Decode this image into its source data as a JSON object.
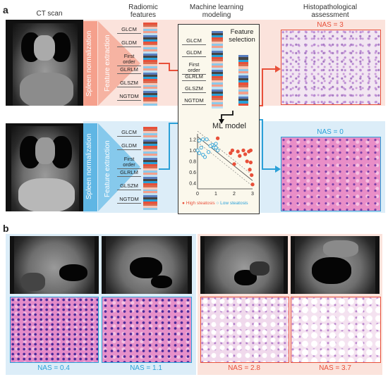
{
  "panel_a": {
    "label": "a",
    "headers": {
      "ct_scan": "CT scan",
      "radiomic": "Radiomic features",
      "ml": "Machine learning modeling",
      "histo": "Histopathological assessment"
    },
    "spleen_normalization": "Spleen normalization",
    "feature_extraction": "Feature extraction",
    "features": [
      "GLCM",
      "GLDM",
      "First order",
      "GLRLM",
      "GLSZM",
      "NGTDM"
    ],
    "feature_selection": "Feature selection",
    "ml_model": "ML model",
    "top_nas": "NAS = 3",
    "bottom_nas": "NAS = 0",
    "colors": {
      "high": "#e8503a",
      "low": "#2aa0d8",
      "band_top": "#fbe3dc",
      "band_bottom": "#dcedf8"
    }
  },
  "chart_data": {
    "type": "scatter",
    "xlim": [
      0,
      3
    ],
    "ylim": [
      0.3,
      1.3
    ],
    "x_ticks": [
      "0",
      "1",
      "2",
      "3"
    ],
    "y_ticks": [
      "0.4",
      "0.6",
      "0.8",
      "1.0",
      "1.2"
    ],
    "series": [
      {
        "name": "High steatosis",
        "marker": "filled",
        "color": "#e8503a",
        "points": [
          [
            1.1,
            1.22
          ],
          [
            1.9,
            1.0
          ],
          [
            2.2,
            0.98
          ],
          [
            2.6,
            0.93
          ],
          [
            2.8,
            0.98
          ],
          [
            2.9,
            1.0
          ],
          [
            2.3,
            0.9
          ],
          [
            2.7,
            0.8
          ],
          [
            2.0,
            0.75
          ],
          [
            2.9,
            0.78
          ],
          [
            2.95,
            0.55
          ],
          [
            3.0,
            0.38
          ],
          [
            2.85,
            0.65
          ],
          [
            1.8,
            0.95
          ],
          [
            2.5,
            1.0
          ]
        ]
      },
      {
        "name": "Low steatosis",
        "marker": "open",
        "color": "#2aa0d8",
        "points": [
          [
            0.1,
            1.18
          ],
          [
            0.3,
            1.2
          ],
          [
            0.5,
            1.2
          ],
          [
            0.2,
            1.05
          ],
          [
            0.0,
            1.0
          ],
          [
            0.6,
            0.97
          ],
          [
            0.8,
            1.1
          ],
          [
            0.9,
            1.05
          ],
          [
            1.0,
            1.12
          ],
          [
            1.1,
            1.0
          ],
          [
            0.4,
            0.88
          ],
          [
            0.1,
            0.95
          ],
          [
            0.7,
            1.08
          ],
          [
            1.0,
            1.05
          ],
          [
            0.3,
            0.92
          ]
        ]
      }
    ]
  },
  "panel_b": {
    "label": "b",
    "nas_values": [
      "NAS = 0.4",
      "NAS = 1.1",
      "NAS = 2.8",
      "NAS = 3.7"
    ]
  }
}
